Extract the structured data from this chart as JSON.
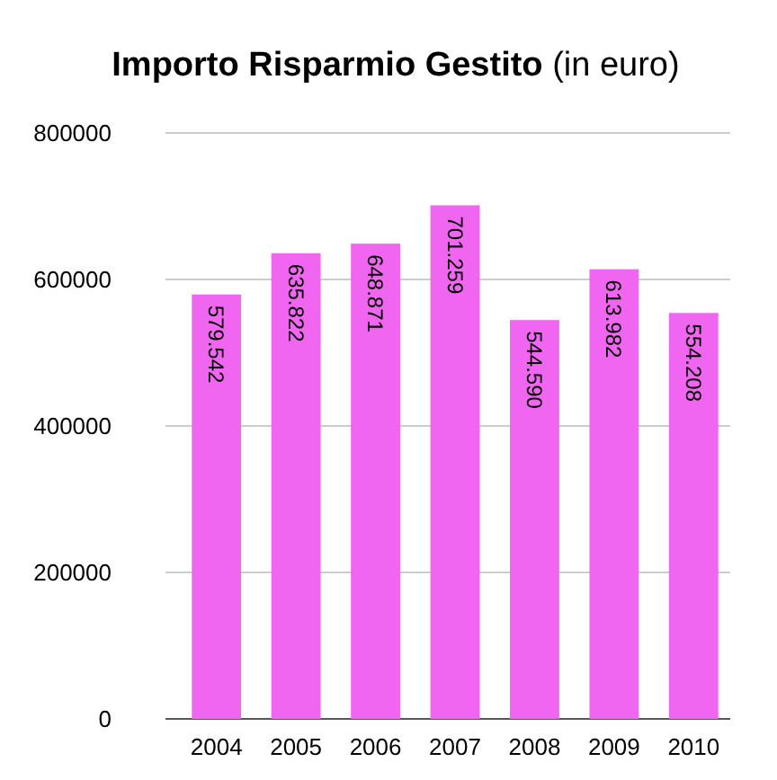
{
  "chart_data": {
    "type": "bar",
    "title": "Importo Risparmio Gestito",
    "subtitle": "(in euro)",
    "categories": [
      "2004",
      "2005",
      "2006",
      "2007",
      "2008",
      "2009",
      "2010"
    ],
    "values": [
      579542,
      635822,
      648871,
      701259,
      544590,
      613982,
      554208
    ],
    "value_labels": [
      "579.542",
      "635.822",
      "648.871",
      "701.259",
      "544.590",
      "613.982",
      "554.208"
    ],
    "color": "#f066f0",
    "ylim": [
      0,
      800000
    ],
    "yticks": [
      0,
      200000,
      400000,
      600000,
      800000
    ],
    "grid": "y"
  }
}
